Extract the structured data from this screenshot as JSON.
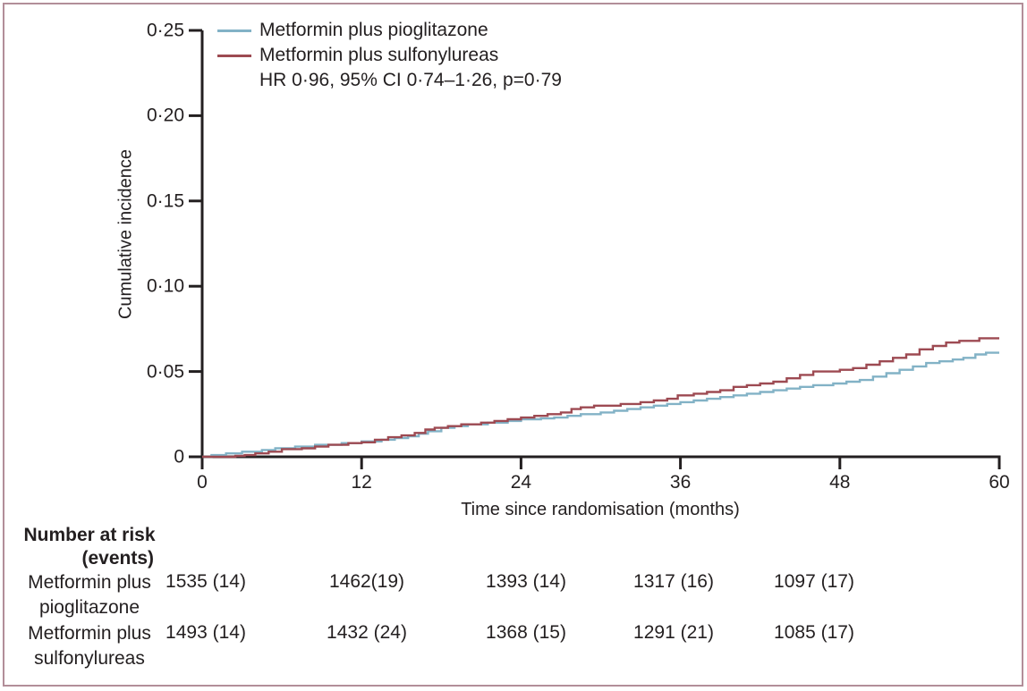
{
  "frame": {
    "border_color": "#b28e99"
  },
  "colors": {
    "text": "#231f20",
    "axis": "#231f20",
    "pioglitazone_line": "#82b2c6",
    "sulfonylureas_line": "#9d4a52"
  },
  "legend": {
    "items": [
      {
        "label": "Metformin plus pioglitazone",
        "color": "#82b2c6"
      },
      {
        "label": "Metformin plus sulfonylureas",
        "color": "#9d4a52"
      }
    ],
    "stats": "HR 0·96, 95% CI 0·74–1·26, p=0·79"
  },
  "chart_data": {
    "type": "line",
    "subtype": "kaplan-meier-step",
    "title": "",
    "xlabel": "Time since randomisation (months)",
    "ylabel": "Cumulative incidence",
    "xlim": [
      0,
      60
    ],
    "ylim": [
      0,
      0.25
    ],
    "x_ticks": [
      0,
      12,
      24,
      36,
      48,
      60
    ],
    "x_tick_labels": [
      "0",
      "12",
      "24",
      "36",
      "48",
      "60"
    ],
    "y_ticks": [
      0,
      0.05,
      0.1,
      0.15,
      0.2,
      0.25
    ],
    "y_tick_labels": [
      "0",
      "0·05",
      "0·10",
      "0·15",
      "0·20",
      "0·25"
    ],
    "annotation": "HR 0·96, 95% CI 0·74–1·26, p=0·79",
    "legend_position": "top-left",
    "grid": false,
    "series": [
      {
        "name": "Metformin plus pioglitazone",
        "color": "#82b2c6",
        "points": [
          [
            0,
            0
          ],
          [
            0.7,
            0.001
          ],
          [
            1.8,
            0.002
          ],
          [
            3,
            0.003
          ],
          [
            4.5,
            0.004
          ],
          [
            5.5,
            0.005
          ],
          [
            7,
            0.006
          ],
          [
            8.5,
            0.007
          ],
          [
            10.5,
            0.008
          ],
          [
            12,
            0.009
          ],
          [
            13.5,
            0.01
          ],
          [
            14.5,
            0.011
          ],
          [
            15.5,
            0.012
          ],
          [
            16.3,
            0.0135
          ],
          [
            17,
            0.015
          ],
          [
            18,
            0.017
          ],
          [
            19,
            0.018
          ],
          [
            20,
            0.019
          ],
          [
            21.5,
            0.02
          ],
          [
            23,
            0.021
          ],
          [
            24,
            0.022
          ],
          [
            25.5,
            0.0225
          ],
          [
            26.5,
            0.023
          ],
          [
            27.5,
            0.024
          ],
          [
            28.5,
            0.025
          ],
          [
            30,
            0.026
          ],
          [
            31,
            0.027
          ],
          [
            32,
            0.028
          ],
          [
            33,
            0.029
          ],
          [
            34,
            0.03
          ],
          [
            35,
            0.031
          ],
          [
            36,
            0.032
          ],
          [
            37,
            0.033
          ],
          [
            38,
            0.034
          ],
          [
            39,
            0.035
          ],
          [
            40,
            0.036
          ],
          [
            41,
            0.037
          ],
          [
            42,
            0.038
          ],
          [
            43,
            0.039
          ],
          [
            44,
            0.04
          ],
          [
            45,
            0.041
          ],
          [
            46,
            0.042
          ],
          [
            47.5,
            0.043
          ],
          [
            48.5,
            0.044
          ],
          [
            49.5,
            0.045
          ],
          [
            50.5,
            0.047
          ],
          [
            51.5,
            0.049
          ],
          [
            52.5,
            0.051
          ],
          [
            53.5,
            0.053
          ],
          [
            54.5,
            0.055
          ],
          [
            55.5,
            0.056
          ],
          [
            56.5,
            0.057
          ],
          [
            57.3,
            0.058
          ],
          [
            58.2,
            0.06
          ],
          [
            59,
            0.061
          ]
        ]
      },
      {
        "name": "Metformin plus sulfonylureas",
        "color": "#9d4a52",
        "points": [
          [
            0,
            0
          ],
          [
            2.5,
            0.0005
          ],
          [
            3.2,
            0.001
          ],
          [
            4,
            0.002
          ],
          [
            5,
            0.003
          ],
          [
            6,
            0.0045
          ],
          [
            7.5,
            0.005
          ],
          [
            8.5,
            0.006
          ],
          [
            9.5,
            0.007
          ],
          [
            11,
            0.008
          ],
          [
            12,
            0.0085
          ],
          [
            13,
            0.01
          ],
          [
            14,
            0.0115
          ],
          [
            15,
            0.0125
          ],
          [
            16,
            0.014
          ],
          [
            16.8,
            0.016
          ],
          [
            17.5,
            0.017
          ],
          [
            18.5,
            0.018
          ],
          [
            19.5,
            0.019
          ],
          [
            21,
            0.02
          ],
          [
            22,
            0.021
          ],
          [
            23,
            0.022
          ],
          [
            24,
            0.023
          ],
          [
            25,
            0.024
          ],
          [
            26,
            0.025
          ],
          [
            27,
            0.026
          ],
          [
            27.8,
            0.028
          ],
          [
            28.5,
            0.029
          ],
          [
            29.5,
            0.03
          ],
          [
            31.5,
            0.031
          ],
          [
            33,
            0.032
          ],
          [
            34,
            0.033
          ],
          [
            35,
            0.034
          ],
          [
            35.8,
            0.036
          ],
          [
            37,
            0.037
          ],
          [
            38,
            0.038
          ],
          [
            39,
            0.039
          ],
          [
            40,
            0.041
          ],
          [
            41,
            0.042
          ],
          [
            42,
            0.043
          ],
          [
            43,
            0.044
          ],
          [
            44,
            0.046
          ],
          [
            45,
            0.048
          ],
          [
            46,
            0.05
          ],
          [
            48,
            0.051
          ],
          [
            49,
            0.052
          ],
          [
            50,
            0.054
          ],
          [
            51,
            0.056
          ],
          [
            52,
            0.058
          ],
          [
            53,
            0.06
          ],
          [
            54,
            0.063
          ],
          [
            55,
            0.065
          ],
          [
            56,
            0.067
          ],
          [
            57,
            0.068
          ],
          [
            58.5,
            0.0695
          ]
        ]
      }
    ]
  },
  "risk_table": {
    "header_line1": "Number at risk",
    "header_line2": "(events)",
    "columns_months": [
      0,
      12,
      24,
      36,
      48
    ],
    "rows": [
      {
        "label_line1": "Metformin plus",
        "label_line2": "pioglitazone",
        "values": [
          "1535 (14)",
          "1462(19)",
          "1393 (14)",
          "1317 (16)",
          "1097 (17)"
        ]
      },
      {
        "label_line1": "Metformin plus",
        "label_line2": "sulfonylureas",
        "values": [
          "1493 (14)",
          "1432 (24)",
          "1368 (15)",
          "1291 (21)",
          "1085 (17)"
        ]
      }
    ]
  }
}
